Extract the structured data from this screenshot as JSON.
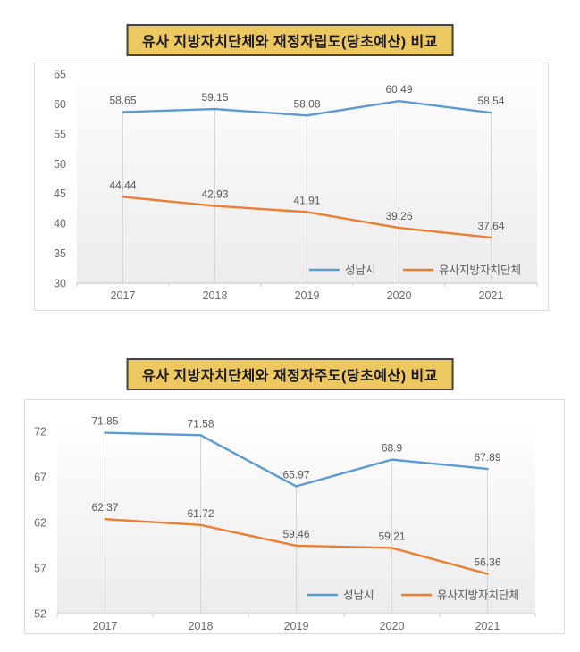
{
  "page": {
    "background": "#ffffff",
    "title_box_bg": "#EDC75F",
    "title_box_border": "#45413B",
    "title_text_color": "#17171F"
  },
  "colors": {
    "seongnam_line": "#5B9BD5",
    "similar_gov_line": "#ED7D31",
    "data_label": "#595959",
    "axis_label": "#6B6B6B",
    "drop_line": "#D6D6D6",
    "axis_line": "#C8C8C8"
  },
  "chart_data": [
    {
      "type": "line",
      "title": "유사 지방자치단체와 재정자립도(당초예산) 비교",
      "categories": [
        "2017",
        "2018",
        "2019",
        "2020",
        "2021"
      ],
      "series": [
        {
          "name": "성남시",
          "color": "#5B9BD5",
          "values": [
            58.65,
            59.15,
            58.08,
            60.49,
            58.54
          ],
          "labels": [
            "58.65",
            "59.15",
            "58.08",
            "60.49",
            "58.54"
          ]
        },
        {
          "name": "유사지방자치단체",
          "color": "#ED7D31",
          "values": [
            44.44,
            42.93,
            41.91,
            39.26,
            37.64
          ],
          "labels": [
            "44.44",
            "42.93",
            "41.91",
            "39.26",
            "37.64"
          ]
        }
      ],
      "ylim": [
        30,
        65
      ],
      "yticks": [
        30,
        35,
        40,
        45,
        50,
        55,
        60,
        65
      ],
      "grid": "vertical-drop-lines-only",
      "legend_position": "inside-bottom-right",
      "xlabel": "",
      "ylabel": ""
    },
    {
      "type": "line",
      "title": "유사 지방자치단체와 재정자주도(당초예산) 비교",
      "categories": [
        "2017",
        "2018",
        "2019",
        "2020",
        "2021"
      ],
      "series": [
        {
          "name": "성남시",
          "color": "#5B9BD5",
          "values": [
            71.85,
            71.58,
            65.97,
            68.9,
            67.89
          ],
          "labels": [
            "71.85",
            "71.58",
            "65.97",
            "68.9",
            "67.89"
          ]
        },
        {
          "name": "유사지방자치단체",
          "color": "#ED7D31",
          "values": [
            62.37,
            61.72,
            59.46,
            59.21,
            56.36
          ],
          "labels": [
            "62.37",
            "61.72",
            "59.46",
            "59.21",
            "56.36"
          ]
        }
      ],
      "ylim": [
        52,
        72
      ],
      "yticks": [
        52,
        57,
        62,
        67,
        72
      ],
      "grid": "vertical-drop-lines-only",
      "legend_position": "inside-bottom-right",
      "xlabel": "",
      "ylabel": ""
    }
  ]
}
